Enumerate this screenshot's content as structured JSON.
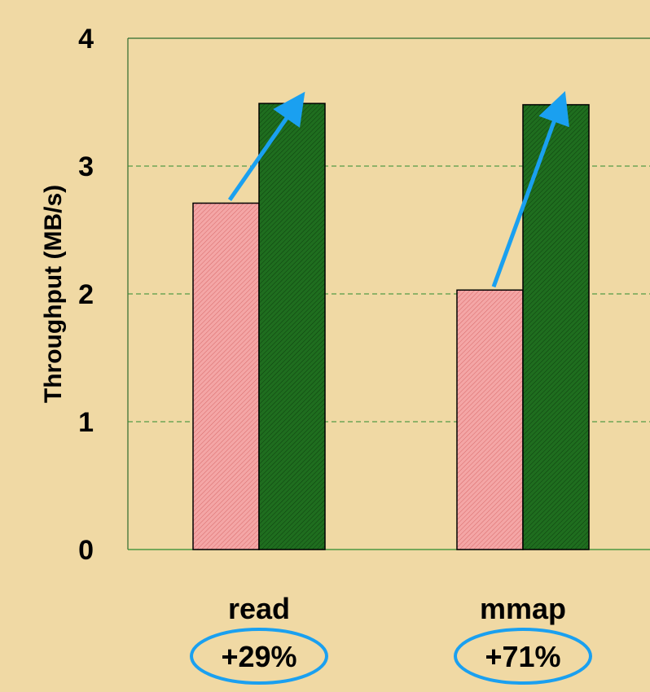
{
  "chart_data": {
    "type": "bar",
    "categories": [
      "read",
      "mmap"
    ],
    "series": [
      {
        "values": [
          2.71,
          2.03
        ],
        "color": "#f4a0a0",
        "pattern": "diagonal-hatch-light"
      },
      {
        "values": [
          3.49,
          3.48
        ],
        "color": "#1e6b1e",
        "pattern": "diagonal-hatch-dark"
      }
    ],
    "annotations": [
      "+29%",
      "+71%"
    ],
    "ylabel": "Throughput (MB/s)",
    "xlabel": "",
    "ylim": [
      0,
      4
    ],
    "yticks": [
      "0",
      "1",
      "2",
      "3",
      "4"
    ],
    "grid": true,
    "grid_color": "#2e8b2e",
    "arrow_color": "#1aa0f0",
    "background": "#f0d9a4"
  }
}
